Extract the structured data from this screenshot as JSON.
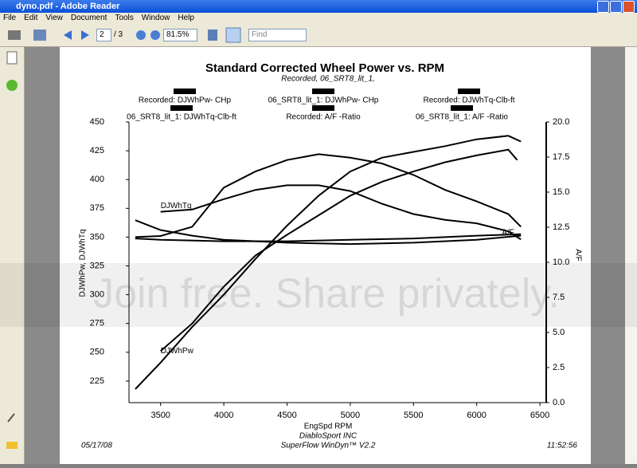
{
  "window": {
    "title": "dyno.pdf - Adobe Reader"
  },
  "menu": [
    "File",
    "Edit",
    "View",
    "Document",
    "Tools",
    "Window",
    "Help"
  ],
  "toolbar": {
    "page": "2",
    "page_count": "/ 3",
    "zoom": "81.5%",
    "find": "Find"
  },
  "watermark": "Join free. Share privately.",
  "chart_data": {
    "type": "line",
    "title": "Standard Corrected Wheel Power vs. RPM",
    "subtitle": "Recorded, 06_SRT8_lit_1,",
    "x_label": "EngSpd  RPM",
    "y_label": "DJWhPw, DJWhTq",
    "y2_label": "A/F",
    "xlim": [
      3250,
      6550
    ],
    "xticks": [
      3500,
      4000,
      4500,
      5000,
      5500,
      6000,
      6500
    ],
    "ylim": [
      206.25,
      450
    ],
    "yticks": [
      225,
      250,
      275,
      300,
      325,
      350,
      375,
      400,
      425,
      450
    ],
    "y2lim": [
      0,
      20
    ],
    "y2ticks": [
      {
        "value": 0,
        "label": "0.0"
      },
      2.5,
      {
        "value": 5,
        "label": "5.0"
      },
      7.5,
      {
        "value": 10,
        "label": "10.0"
      },
      12.5,
      {
        "value": 15,
        "label": "15.0"
      },
      17.5,
      {
        "value": 20,
        "label": "20.0"
      }
    ],
    "series": [
      {
        "name": "Recorded:  DJWhPw- CHp",
        "color": "#000000",
        "x": [
          3300,
          3500,
          3750,
          4000,
          4250,
          4500,
          4750,
          5000,
          5250,
          5500,
          5750,
          6000,
          6250,
          6350
        ],
        "values": [
          218,
          241,
          272,
          300,
          331,
          360,
          386,
          407,
          419,
          424,
          429,
          435,
          438,
          433
        ]
      },
      {
        "name": "06_SRT8_lit_1:  DJWhPw- CHp",
        "color": "#000000",
        "x": [
          3500,
          3750,
          4000,
          4250,
          4500,
          4750,
          5000,
          5250,
          5500,
          5750,
          6000,
          6250,
          6320
        ],
        "values": [
          251,
          275,
          307,
          334,
          352,
          369,
          386,
          398,
          407,
          415,
          421,
          426,
          417
        ]
      },
      {
        "name": "Recorded:  DJWhTq-Clb-ft",
        "color": "#000000",
        "x": [
          3300,
          3500,
          3750,
          4000,
          4250,
          4500,
          4750,
          5000,
          5250,
          5500,
          5750,
          6000,
          6250,
          6350
        ],
        "values": [
          350,
          351,
          359,
          393,
          407,
          417,
          422,
          419,
          414,
          404,
          391,
          381,
          370,
          359
        ]
      },
      {
        "name": "06_SRT8_lit_1:  DJWhTq-Clb-ft",
        "color": "#000000",
        "x": [
          3500,
          3750,
          4000,
          4250,
          4500,
          4750,
          5000,
          5250,
          5500,
          5750,
          6000,
          6250,
          6350
        ],
        "values": [
          372,
          374,
          383,
          391,
          395,
          395,
          390,
          379,
          370,
          365,
          362,
          355,
          348
        ]
      },
      {
        "name": "Recorded:  A/F  -Ratio",
        "color": "#000000",
        "axis": "y2",
        "x": [
          3300,
          3500,
          3750,
          4000,
          4500,
          5000,
          5500,
          6000,
          6350
        ],
        "values": [
          13.0,
          12.3,
          11.9,
          11.6,
          11.4,
          11.3,
          11.4,
          11.6,
          11.9
        ]
      },
      {
        "name": "06_SRT8_lit_1:  A/F  -Ratio",
        "color": "#000000",
        "axis": "y2",
        "x": [
          3300,
          3500,
          4000,
          4500,
          5000,
          5500,
          6000,
          6350
        ],
        "values": [
          11.7,
          11.6,
          11.5,
          11.5,
          11.6,
          11.7,
          11.9,
          12.0
        ]
      }
    ],
    "annotations": [
      {
        "text": "DJWhTq",
        "x": 3500,
        "y": 377
      },
      {
        "text": "DJWhPw",
        "x": 3500,
        "y": 251
      },
      {
        "text": "A/F",
        "x": 6200,
        "y": 12.1,
        "axis": "y2"
      }
    ],
    "footer": {
      "date": "05/17/08",
      "company": "DiabloSport INC",
      "software": "SuperFlow WinDyn™ V2.2",
      "time": "11:52:56"
    }
  }
}
